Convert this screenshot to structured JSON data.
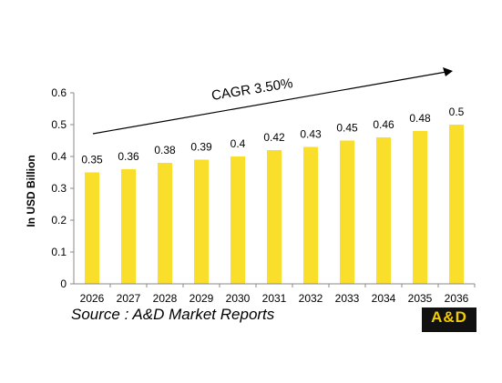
{
  "colors": {
    "bar": "#F9DE2B",
    "axis": "#888888",
    "text": "#000000",
    "logo_bg": "#111111",
    "logo_text": "#F2CC00"
  },
  "chart_data": {
    "type": "bar",
    "categories": [
      "2026",
      "2027",
      "2028",
      "2029",
      "2030",
      "2031",
      "2032",
      "2033",
      "2034",
      "2035",
      "2036"
    ],
    "values": [
      0.35,
      0.36,
      0.38,
      0.39,
      0.4,
      0.42,
      0.43,
      0.45,
      0.46,
      0.48,
      0.5
    ],
    "value_labels": [
      "0.35",
      "0.36",
      "0.38",
      "0.39",
      "0.4",
      "0.42",
      "0.43",
      "0.45",
      "0.46",
      "0.48",
      "0.5"
    ],
    "ylabel": "In USD Billion",
    "ylim": [
      0,
      0.6
    ],
    "yticks": [
      "0",
      "0.1",
      "0.2",
      "0.3",
      "0.4",
      "0.5",
      "0.6"
    ],
    "grid": false,
    "legend": "none",
    "annotation": "CAGR 3.50%"
  },
  "source": "Source : A&D Market Reports",
  "logo": {
    "text": "A&D"
  }
}
